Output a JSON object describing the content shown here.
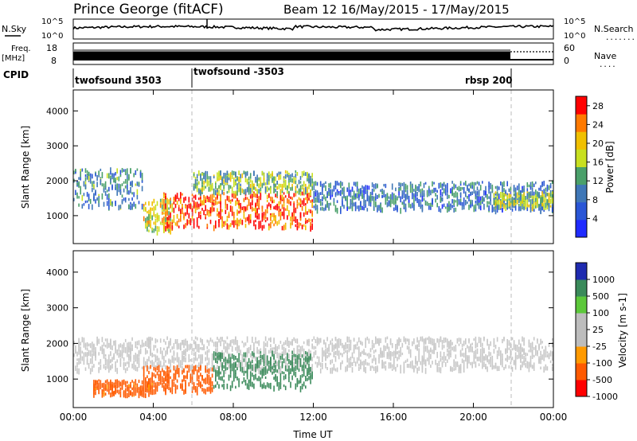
{
  "header": {
    "station": "Prince George (fitACF)",
    "beam_date": "Beam 12 16/May/2015 - 17/May/2015"
  },
  "nsky_panel": {
    "left_label": "N.Sky",
    "right_label": "N.Search",
    "left_ticks": [
      "10^5",
      "10^0"
    ],
    "right_ticks": [
      "10^5",
      "10^0"
    ],
    "legend_dots": "........"
  },
  "freq_panel": {
    "left_label_line1": "Freq.",
    "left_label_line2": "[MHz]",
    "right_label": "Nave",
    "left_ticks": [
      "18",
      "8"
    ],
    "right_ticks": [
      "60",
      "0"
    ],
    "legend_dots": "...."
  },
  "cpid_panel": {
    "label": "CPID",
    "segments": [
      {
        "text": "twofsound 3503",
        "start_hour": 0
      },
      {
        "text": "twofsound -3503",
        "start_hour": 6
      },
      {
        "text": "rbsp 200",
        "start_hour": 22
      }
    ],
    "switch_hours": [
      6,
      22
    ]
  },
  "colors": {
    "power_scale": [
      "#1f2bff",
      "#2a56d6",
      "#3f77b7",
      "#4aa06a",
      "#c8e020",
      "#f0c000",
      "#ff7a00",
      "#ff0000"
    ],
    "velocity_scale": [
      "#ff0000",
      "#ff5a00",
      "#ff9a00",
      "#bdbdbd",
      "#bdbdbd",
      "#5cc83a",
      "#3a8a5a",
      "#1f2bb0"
    ],
    "gray_scatter": "#c8c8c8"
  },
  "chart_data": [
    {
      "type": "heatmap",
      "title": "",
      "xlabel": "",
      "ylabel": "Slant Range [km]",
      "xlim": [
        0,
        24
      ],
      "ylim": [
        200,
        4600
      ],
      "y_ticks": [
        "1000",
        "2000",
        "3000",
        "4000"
      ],
      "x_ticks": [
        "00:00",
        "04:00",
        "08:00",
        "12:00",
        "16:00",
        "20:00",
        "00:00"
      ],
      "colorbar": {
        "label": "Power [dB]",
        "ticks": [
          "4",
          "8",
          "12",
          "16",
          "20",
          "24",
          "28"
        ],
        "range": [
          0,
          30
        ]
      },
      "echo_bands": [
        {
          "from_hour": 0,
          "to_hour": 3.5,
          "from_km": 1300,
          "to_km": 2400,
          "dB": 10
        },
        {
          "from_hour": 3.5,
          "to_hour": 5,
          "from_km": 600,
          "to_km": 1500,
          "dB": 18
        },
        {
          "from_hour": 4.5,
          "to_hour": 12,
          "from_km": 700,
          "to_km": 1700,
          "dB": 26
        },
        {
          "from_hour": 6,
          "to_hour": 12,
          "from_km": 1700,
          "to_km": 2300,
          "dB": 14
        },
        {
          "from_hour": 12,
          "to_hour": 24,
          "from_km": 1200,
          "to_km": 2000,
          "dB": 9
        },
        {
          "from_hour": 21,
          "to_hour": 24,
          "from_km": 1300,
          "to_km": 1700,
          "dB": 16
        }
      ]
    },
    {
      "type": "heatmap",
      "title": "",
      "xlabel": "Time UT",
      "ylabel": "Slant Range [km]",
      "xlim": [
        0,
        24
      ],
      "ylim": [
        200,
        4600
      ],
      "y_ticks": [
        "1000",
        "2000",
        "3000",
        "4000"
      ],
      "x_ticks": [
        "00:00",
        "04:00",
        "08:00",
        "12:00",
        "16:00",
        "20:00",
        "00:00"
      ],
      "colorbar": {
        "label": "Velocity [m s-1]",
        "ticks": [
          "1000",
          "500",
          "100",
          "25",
          "-25",
          "-100",
          "-500",
          "-1000"
        ]
      },
      "echo_bands": [
        {
          "from_hour": 0,
          "to_hour": 24,
          "from_km": 1300,
          "to_km": 2200,
          "m_per_s": 0
        },
        {
          "from_hour": 3.5,
          "to_hour": 7,
          "from_km": 700,
          "to_km": 1400,
          "m_per_s": -300
        },
        {
          "from_hour": 7,
          "to_hour": 12,
          "from_km": 800,
          "to_km": 1800,
          "m_per_s": 200
        },
        {
          "from_hour": 1,
          "to_hour": 4,
          "from_km": 600,
          "to_km": 1000,
          "m_per_s": -150
        }
      ]
    }
  ],
  "time_axis": {
    "label": "Time UT"
  }
}
